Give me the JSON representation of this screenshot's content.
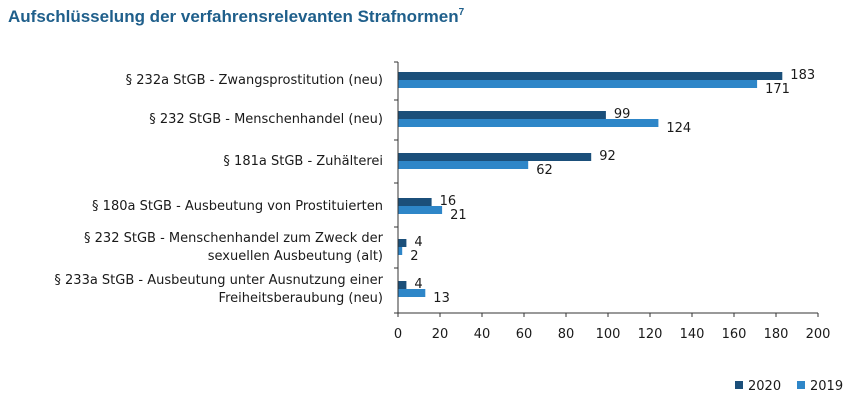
{
  "chart_data": {
    "type": "bar",
    "orientation": "horizontal",
    "title": "Aufschlüsselung der verfahrensrelevanten Strafnormen",
    "title_footnote": "7",
    "categories": [
      [
        "§ 232a StGB - Zwangsprostitution (neu)"
      ],
      [
        "§ 232 StGB - Menschenhandel (neu)"
      ],
      [
        "§ 181a StGB - Zuhälterei"
      ],
      [
        "§ 180a StGB - Ausbeutung von Prostituierten"
      ],
      [
        "§ 232 StGB - Menschenhandel zum Zweck der",
        "sexuellen Ausbeutung (alt)"
      ],
      [
        "§ 233a StGB - Ausbeutung unter Ausnutzung einer",
        "Freiheitsberaubung (neu)"
      ]
    ],
    "series": [
      {
        "name": "2020",
        "color": "#1b4f7a",
        "values": [
          183,
          99,
          92,
          16,
          4,
          4
        ]
      },
      {
        "name": "2019",
        "color": "#2e86c8",
        "values": [
          171,
          124,
          62,
          21,
          2,
          13
        ]
      }
    ],
    "xlim": [
      0,
      200
    ],
    "xticks": [
      "0",
      "20",
      "40",
      "60",
      "80",
      "100",
      "120",
      "140",
      "160",
      "180",
      "200"
    ],
    "xlabel": "",
    "ylabel": "",
    "legend_position": "bottom-right",
    "grid": false
  }
}
